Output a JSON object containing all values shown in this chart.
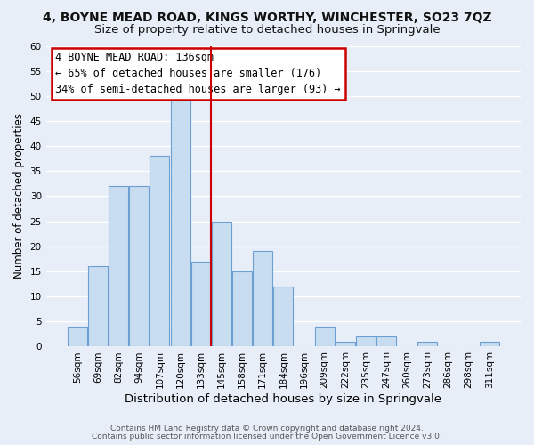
{
  "title": "4, BOYNE MEAD ROAD, KINGS WORTHY, WINCHESTER, SO23 7QZ",
  "subtitle": "Size of property relative to detached houses in Springvale",
  "xlabel": "Distribution of detached houses by size in Springvale",
  "ylabel": "Number of detached properties",
  "bar_labels": [
    "56sqm",
    "69sqm",
    "82sqm",
    "94sqm",
    "107sqm",
    "120sqm",
    "133sqm",
    "145sqm",
    "158sqm",
    "171sqm",
    "184sqm",
    "196sqm",
    "209sqm",
    "222sqm",
    "235sqm",
    "247sqm",
    "260sqm",
    "273sqm",
    "286sqm",
    "298sqm",
    "311sqm"
  ],
  "bar_heights": [
    4,
    16,
    32,
    32,
    38,
    49,
    17,
    25,
    15,
    19,
    12,
    0,
    4,
    1,
    2,
    2,
    0,
    1,
    0,
    0,
    1
  ],
  "bar_color": "#c9ddf0",
  "bar_edge_color": "#6ca0d4",
  "vline_color": "#cc0000",
  "ylim": [
    0,
    60
  ],
  "yticks": [
    0,
    5,
    10,
    15,
    20,
    25,
    30,
    35,
    40,
    45,
    50,
    55,
    60
  ],
  "annotation_title": "4 BOYNE MEAD ROAD: 136sqm",
  "annotation_line1": "← 65% of detached houses are smaller (176)",
  "annotation_line2": "34% of semi-detached houses are larger (93) →",
  "annotation_box_facecolor": "#ffffff",
  "annotation_box_edgecolor": "#cc0000",
  "footer1": "Contains HM Land Registry data © Crown copyright and database right 2024.",
  "footer2": "Contains public sector information licensed under the Open Government Licence v3.0.",
  "fig_facecolor": "#e8eef8",
  "plot_facecolor": "#e8eef8",
  "grid_color": "#ffffff",
  "title_fontsize": 10,
  "subtitle_fontsize": 9.5,
  "xlabel_fontsize": 9.5,
  "ylabel_fontsize": 8.5,
  "tick_fontsize": 7.5,
  "annotation_fontsize": 8.5,
  "footer_fontsize": 6.5
}
